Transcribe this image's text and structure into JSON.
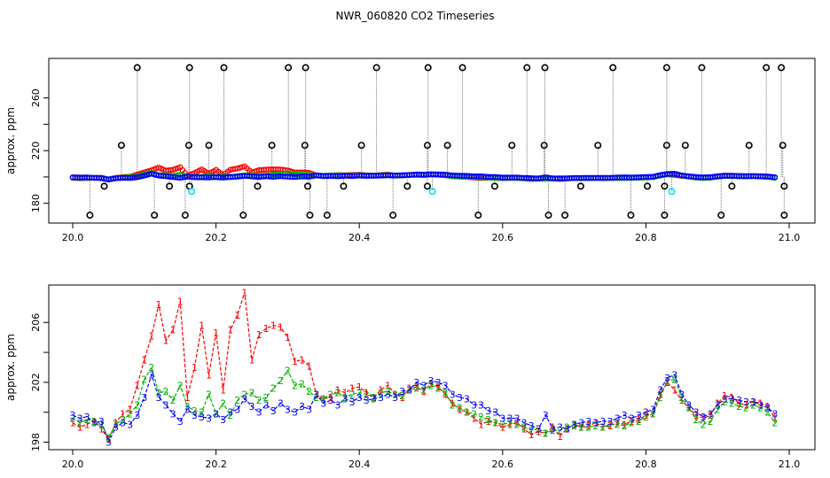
{
  "title": "NWR_060820  CO2 Timeseries",
  "colors": {
    "series1": "#ff0000",
    "series2": "#00b000",
    "series3": "#0000ff",
    "flag_black": "#000000",
    "flag_cyan": "#00e5ee",
    "vertical_lines": "#777777",
    "axis": "#000000"
  },
  "chart_data": [
    {
      "type": "scatter",
      "title": "NWR_060820  CO2 Timeseries",
      "xlabel": "",
      "ylabel": "approx. ppm",
      "xlim": [
        20.0,
        21.0
      ],
      "ylim": [
        165,
        290
      ],
      "xticks": [
        "20.0",
        "20.2",
        "20.4",
        "20.6",
        "20.8",
        "21.0"
      ],
      "yticks": [
        "180",
        "220",
        "260"
      ],
      "grid": false,
      "flag_high_ppm": 283,
      "flag_low_ppm": 171,
      "flag_mid_ppm": 224,
      "flag_low2_ppm": 193,
      "flag_cyan_ppm": 189,
      "flags_high_x": [
        20.09,
        20.163,
        20.211,
        20.301,
        20.325,
        20.424,
        20.496,
        20.544,
        20.634,
        20.659,
        20.754,
        20.829,
        20.878,
        20.968,
        20.989
      ],
      "flags_low_x": [
        20.024,
        20.114,
        20.157,
        20.238,
        20.331,
        20.355,
        20.447,
        20.566,
        20.664,
        20.687,
        20.779,
        20.826,
        20.905,
        20.993
      ],
      "flags_mid_x": [
        20.068,
        20.162,
        20.19,
        20.278,
        20.324,
        20.403,
        20.495,
        20.523,
        20.613,
        20.658,
        20.733,
        20.829,
        20.855,
        20.944,
        20.991
      ],
      "flags_low2_x": [
        20.044,
        20.135,
        20.163,
        20.258,
        20.328,
        20.378,
        20.467,
        20.495,
        20.589,
        20.709,
        20.802,
        20.826,
        20.92,
        20.993
      ],
      "flags_cyan_x": [
        20.166,
        20.502,
        20.836
      ],
      "series_note_values_from_lower_panel": true
    },
    {
      "type": "line",
      "title": "",
      "xlabel": "",
      "ylabel": "approx. ppm",
      "xlim": [
        20.0,
        21.0
      ],
      "ylim": [
        197.5,
        208.5
      ],
      "xticks": [
        "20.0",
        "20.2",
        "20.4",
        "20.6",
        "20.8",
        "21.0"
      ],
      "yticks": [
        "198",
        "202",
        "206"
      ],
      "grid": false,
      "marker_labels": [
        "1",
        "2",
        "3"
      ],
      "series": [
        {
          "marker": "1",
          "color": "#ff0000",
          "x": [
            20.0,
            20.01,
            20.02,
            20.03,
            20.04,
            20.05,
            20.06,
            20.07,
            20.08,
            20.09,
            20.1,
            20.11,
            20.12,
            20.13,
            20.14,
            20.15,
            20.16,
            20.17,
            20.18,
            20.19,
            20.2,
            20.21,
            20.22,
            20.23,
            20.24,
            20.25,
            20.26,
            20.27,
            20.28,
            20.29,
            20.3,
            20.31,
            20.32,
            20.33,
            20.34,
            20.35,
            20.36,
            20.37,
            20.38,
            20.39,
            20.4,
            20.41,
            20.42,
            20.43,
            20.44,
            20.45,
            20.46,
            20.47,
            20.48,
            20.49,
            20.5,
            20.51,
            20.52,
            20.53,
            20.54,
            20.55,
            20.56,
            20.57,
            20.58,
            20.59,
            20.6,
            20.61,
            20.62,
            20.63,
            20.64,
            20.65,
            20.66,
            20.67,
            20.68,
            20.69,
            20.7,
            20.71,
            20.72,
            20.73,
            20.74,
            20.75,
            20.76,
            20.77,
            20.78,
            20.79,
            20.8,
            20.81,
            20.82,
            20.83,
            20.84,
            20.85,
            20.86,
            20.87,
            20.88,
            20.89,
            20.9,
            20.91,
            20.92,
            20.93,
            20.94,
            20.95,
            20.96,
            20.97,
            20.98
          ],
          "y": [
            199.3,
            199.0,
            199.2,
            199.4,
            198.9,
            198.2,
            199.3,
            199.9,
            200.2,
            201.8,
            203.5,
            205.1,
            207.2,
            204.8,
            205.5,
            207.4,
            201.0,
            203.0,
            205.8,
            202.5,
            205.3,
            201.5,
            205.5,
            206.5,
            208.0,
            203.5,
            205.2,
            205.6,
            205.8,
            205.7,
            205.0,
            203.4,
            203.5,
            203.1,
            201.2,
            200.9,
            201.0,
            201.5,
            201.3,
            201.6,
            201.7,
            201.3,
            201.0,
            201.5,
            201.8,
            201.2,
            201.0,
            201.6,
            201.7,
            201.4,
            201.9,
            201.7,
            201.2,
            200.6,
            200.2,
            200.0,
            199.6,
            199.2,
            199.4,
            199.3,
            199.0,
            199.2,
            199.3,
            198.9,
            198.5,
            198.7,
            198.6,
            199.0,
            198.4,
            198.9,
            199.2,
            199.0,
            199.1,
            199.3,
            199.0,
            199.1,
            199.3,
            199.2,
            199.4,
            199.5,
            199.8,
            199.9,
            201.2,
            202.0,
            201.5,
            200.8,
            200.3,
            199.8,
            199.6,
            199.8,
            200.6,
            201.1,
            201.0,
            200.6,
            200.5,
            200.7,
            200.6,
            200.4,
            199.6
          ]
        },
        {
          "marker": "2",
          "color": "#00b000",
          "x": [
            20.0,
            20.01,
            20.02,
            20.03,
            20.04,
            20.05,
            20.06,
            20.07,
            20.08,
            20.09,
            20.1,
            20.11,
            20.12,
            20.13,
            20.14,
            20.15,
            20.16,
            20.17,
            20.18,
            20.19,
            20.2,
            20.21,
            20.22,
            20.23,
            20.24,
            20.25,
            20.26,
            20.27,
            20.28,
            20.29,
            20.3,
            20.31,
            20.32,
            20.33,
            20.34,
            20.35,
            20.36,
            20.37,
            20.38,
            20.39,
            20.4,
            20.41,
            20.42,
            20.43,
            20.44,
            20.45,
            20.46,
            20.47,
            20.48,
            20.49,
            20.5,
            20.51,
            20.52,
            20.53,
            20.54,
            20.55,
            20.56,
            20.57,
            20.58,
            20.59,
            20.6,
            20.61,
            20.62,
            20.63,
            20.64,
            20.65,
            20.66,
            20.67,
            20.68,
            20.69,
            20.7,
            20.71,
            20.72,
            20.73,
            20.74,
            20.75,
            20.76,
            20.77,
            20.78,
            20.79,
            20.8,
            20.81,
            20.82,
            20.83,
            20.84,
            20.85,
            20.86,
            20.87,
            20.88,
            20.89,
            20.9,
            20.91,
            20.92,
            20.93,
            20.94,
            20.95,
            20.96,
            20.97,
            20.98
          ],
          "y": [
            199.6,
            199.3,
            199.5,
            199.4,
            199.2,
            198.3,
            199.2,
            199.5,
            199.9,
            200.5,
            202.2,
            203.0,
            201.3,
            201.4,
            200.8,
            201.8,
            200.4,
            200.1,
            200.0,
            201.2,
            199.9,
            200.6,
            199.8,
            200.8,
            201.2,
            201.3,
            200.8,
            201.0,
            201.6,
            202.1,
            202.8,
            201.8,
            201.9,
            201.4,
            201.0,
            200.9,
            201.2,
            201.3,
            201.0,
            201.2,
            201.3,
            201.2,
            201.0,
            201.3,
            201.4,
            201.2,
            201.1,
            201.5,
            201.6,
            201.5,
            201.8,
            201.6,
            201.3,
            200.5,
            200.3,
            200.0,
            199.9,
            199.7,
            199.5,
            199.3,
            199.2,
            199.3,
            199.2,
            199.0,
            198.8,
            198.9,
            198.6,
            198.8,
            198.8,
            199.0,
            199.1,
            199.0,
            199.0,
            199.1,
            199.0,
            199.2,
            199.2,
            199.1,
            199.3,
            199.4,
            199.7,
            199.9,
            201.0,
            202.1,
            202.2,
            201.0,
            200.3,
            199.5,
            199.2,
            199.4,
            200.2,
            200.7,
            200.6,
            200.4,
            200.3,
            200.5,
            200.3,
            200.0,
            199.3
          ]
        },
        {
          "marker": "3",
          "color": "#0000ff",
          "x": [
            20.0,
            20.01,
            20.02,
            20.03,
            20.04,
            20.05,
            20.06,
            20.07,
            20.08,
            20.09,
            20.1,
            20.11,
            20.12,
            20.13,
            20.14,
            20.15,
            20.16,
            20.17,
            20.18,
            20.19,
            20.2,
            20.21,
            20.22,
            20.23,
            20.24,
            20.25,
            20.26,
            20.27,
            20.28,
            20.29,
            20.3,
            20.31,
            20.32,
            20.33,
            20.34,
            20.35,
            20.36,
            20.37,
            20.38,
            20.39,
            20.4,
            20.41,
            20.42,
            20.43,
            20.44,
            20.45,
            20.46,
            20.47,
            20.48,
            20.49,
            20.5,
            20.51,
            20.52,
            20.53,
            20.54,
            20.55,
            20.56,
            20.57,
            20.58,
            20.59,
            20.6,
            20.61,
            20.62,
            20.63,
            20.64,
            20.65,
            20.66,
            20.67,
            20.68,
            20.69,
            20.7,
            20.71,
            20.72,
            20.73,
            20.74,
            20.75,
            20.76,
            20.77,
            20.78,
            20.79,
            20.8,
            20.81,
            20.82,
            20.83,
            20.84,
            20.85,
            20.86,
            20.87,
            20.88,
            20.89,
            20.9,
            20.91,
            20.92,
            20.93,
            20.94,
            20.95,
            20.96,
            20.97,
            20.98
          ],
          "y": [
            199.8,
            199.6,
            199.7,
            199.3,
            199.4,
            198.0,
            199.0,
            199.3,
            199.2,
            199.8,
            201.0,
            202.5,
            201.0,
            200.5,
            199.9,
            199.4,
            200.2,
            199.8,
            199.7,
            199.6,
            199.9,
            199.5,
            200.0,
            200.2,
            200.9,
            200.4,
            200.0,
            200.5,
            200.1,
            200.6,
            200.2,
            200.0,
            200.4,
            200.2,
            201.2,
            200.6,
            200.8,
            200.5,
            200.9,
            200.7,
            201.0,
            200.8,
            200.9,
            201.0,
            201.2,
            201.0,
            201.4,
            201.5,
            202.0,
            201.8,
            202.1,
            202.0,
            201.8,
            201.2,
            201.0,
            200.9,
            200.5,
            200.5,
            200.1,
            200.0,
            199.6,
            199.6,
            199.6,
            199.3,
            199.1,
            198.9,
            199.8,
            198.9,
            199.0,
            198.9,
            199.2,
            199.3,
            199.4,
            199.3,
            199.4,
            199.4,
            199.6,
            199.8,
            199.6,
            199.8,
            200.0,
            200.2,
            201.5,
            202.3,
            202.5,
            201.2,
            200.5,
            200.0,
            199.7,
            199.9,
            200.5,
            200.9,
            200.9,
            200.8,
            200.7,
            200.7,
            200.5,
            200.3,
            199.9
          ]
        }
      ]
    }
  ]
}
